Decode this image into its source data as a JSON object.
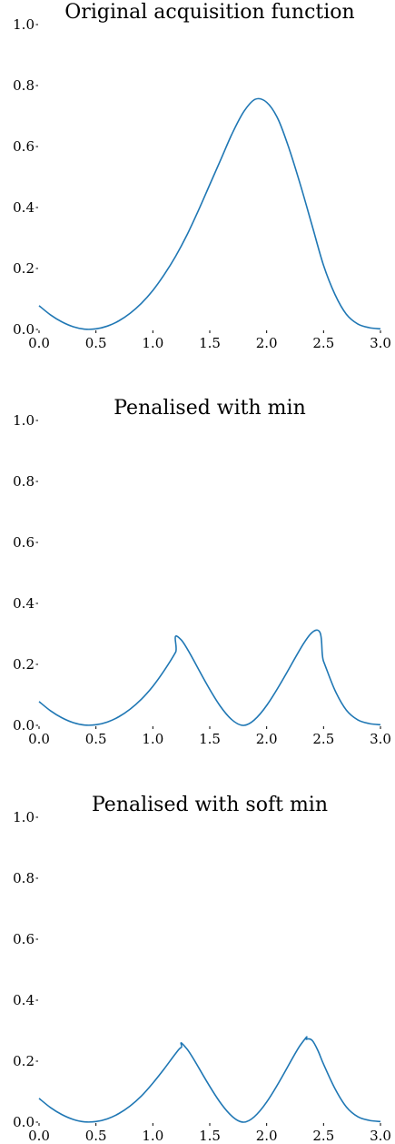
{
  "chart_data": [
    {
      "type": "line",
      "title": "Original acquisition function",
      "xlim": [
        0,
        3
      ],
      "ylim": [
        0,
        1
      ],
      "xticks": [
        "0.0",
        "0.5",
        "1.0",
        "1.5",
        "2.0",
        "2.5",
        "3.0"
      ],
      "yticks": [
        "0.0",
        "0.2",
        "0.4",
        "0.6",
        "0.8",
        "1.0"
      ],
      "grid": false,
      "series": [
        {
          "color": "#1f77b4",
          "x": [
            0.0,
            0.1,
            0.2,
            0.3,
            0.4,
            0.5,
            0.6,
            0.7,
            0.8,
            0.9,
            1.0,
            1.1,
            1.2,
            1.3,
            1.4,
            1.5,
            1.6,
            1.7,
            1.8,
            1.9,
            2.0,
            2.1,
            2.2,
            2.3,
            2.4,
            2.5,
            2.6,
            2.7,
            2.8,
            2.9,
            3.0
          ],
          "y": [
            0.078,
            0.048,
            0.025,
            0.009,
            0.001,
            0.002,
            0.011,
            0.028,
            0.053,
            0.086,
            0.128,
            0.18,
            0.24,
            0.31,
            0.39,
            0.475,
            0.56,
            0.645,
            0.715,
            0.755,
            0.745,
            0.69,
            0.59,
            0.47,
            0.34,
            0.21,
            0.115,
            0.05,
            0.018,
            0.006,
            0.002
          ]
        }
      ]
    },
    {
      "type": "line",
      "title": "Penalised with min",
      "xlim": [
        0,
        3
      ],
      "ylim": [
        0,
        1
      ],
      "xticks": [
        "0.0",
        "0.5",
        "1.0",
        "1.5",
        "2.0",
        "2.5",
        "3.0"
      ],
      "yticks": [
        "0.0",
        "0.2",
        "0.4",
        "0.6",
        "0.8",
        "1.0"
      ],
      "grid": false,
      "series": [
        {
          "color": "#1f77b4",
          "x": [
            0.0,
            0.1,
            0.2,
            0.3,
            0.4,
            0.5,
            0.6,
            0.7,
            0.8,
            0.9,
            1.0,
            1.1,
            1.2,
            1.25,
            1.8,
            2.4,
            2.5,
            2.6,
            2.7,
            2.8,
            2.9,
            3.0
          ],
          "y": [
            0.078,
            0.048,
            0.025,
            0.009,
            0.001,
            0.002,
            0.011,
            0.028,
            0.053,
            0.086,
            0.128,
            0.18,
            0.24,
            0.28,
            0.0,
            0.305,
            0.21,
            0.115,
            0.05,
            0.018,
            0.006,
            0.002
          ]
        }
      ]
    },
    {
      "type": "line",
      "title": "Penalised with soft min",
      "xlim": [
        0,
        3
      ],
      "ylim": [
        0,
        1
      ],
      "xticks": [
        "0.0",
        "0.5",
        "1.0",
        "1.5",
        "2.0",
        "2.5",
        "3.0"
      ],
      "yticks": [
        "0.0",
        "0.2",
        "0.4",
        "0.6",
        "0.8",
        "1.0"
      ],
      "grid": false,
      "series": [
        {
          "color": "#1f77b4",
          "x": [
            0.0,
            0.1,
            0.2,
            0.3,
            0.4,
            0.5,
            0.6,
            0.7,
            0.8,
            0.9,
            1.0,
            1.1,
            1.2,
            1.25,
            1.3,
            1.8,
            2.3,
            2.35,
            2.4,
            2.45,
            2.5,
            2.6,
            2.7,
            2.8,
            2.9,
            3.0
          ],
          "y": [
            0.078,
            0.048,
            0.025,
            0.009,
            0.001,
            0.002,
            0.011,
            0.028,
            0.053,
            0.086,
            0.128,
            0.175,
            0.225,
            0.245,
            0.24,
            0.0,
            0.255,
            0.272,
            0.268,
            0.235,
            0.19,
            0.11,
            0.05,
            0.018,
            0.006,
            0.002
          ]
        }
      ]
    }
  ]
}
